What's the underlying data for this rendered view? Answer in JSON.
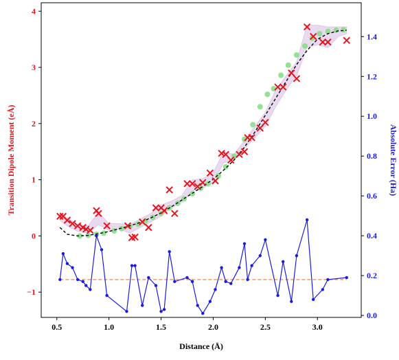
{
  "chart_data": {
    "type": "scatter",
    "title": "",
    "xlabel": "Distance (Å)",
    "ylabel_left": "Transition Dipole Moment (eÅ)",
    "ylabel_right": "Absolute Error (Ha)",
    "xlim": [
      0.35,
      3.42
    ],
    "ylim_left": [
      -1.45,
      4.15
    ],
    "ylim_right": [
      -0.01,
      1.57
    ],
    "xticks": [
      "0.5",
      "1.0",
      "1.5",
      "2.0",
      "2.5",
      "3.0"
    ],
    "yticks_left": [
      "−1",
      "0",
      "1",
      "2",
      "3",
      "4"
    ],
    "yticks_right": [
      "0.0",
      "0.2",
      "0.4",
      "0.6",
      "0.8",
      "1.0",
      "1.2",
      "1.4"
    ],
    "grid": false,
    "legend": false,
    "colors": {
      "left_axis": "#e8141c",
      "right_axis": "#1a1ae6",
      "reference_curve": "#000000",
      "predicted_points": "#88dd88",
      "uncertainty_band": "#c9a3d9",
      "observed_points": "#e8141c",
      "error_line": "#1a1ae6",
      "baseline": "#f07030"
    },
    "reference_curve": {
      "x": [
        0.53,
        0.6,
        0.7,
        0.8,
        0.9,
        1.0,
        1.1,
        1.2,
        1.3,
        1.4,
        1.5,
        1.6,
        1.7,
        1.8,
        1.9,
        2.0,
        2.1,
        2.2,
        2.3,
        2.4,
        2.5,
        2.6,
        2.7,
        2.8,
        2.9,
        3.0,
        3.1,
        3.2,
        3.28
      ],
      "y": [
        0.15,
        0.03,
        0.0,
        0.01,
        0.04,
        0.08,
        0.13,
        0.18,
        0.24,
        0.32,
        0.41,
        0.52,
        0.64,
        0.76,
        0.88,
        1.01,
        1.17,
        1.35,
        1.58,
        1.85,
        2.15,
        2.45,
        2.75,
        3.05,
        3.3,
        3.5,
        3.6,
        3.65,
        3.66
      ]
    },
    "predicted_points": {
      "x": [
        0.72,
        0.8,
        0.88,
        0.95,
        1.05,
        1.12,
        1.2,
        1.28,
        1.35,
        1.42,
        1.5,
        1.58,
        1.66,
        1.72,
        1.8,
        1.88,
        1.95,
        2.05,
        2.12,
        2.2,
        2.3,
        2.38,
        2.45,
        2.52,
        2.58,
        2.65,
        2.72,
        2.8,
        2.88,
        2.95,
        3.02,
        3.1,
        3.18,
        3.25
      ],
      "y": [
        0.0,
        0.01,
        0.03,
        0.05,
        0.09,
        0.13,
        0.17,
        0.21,
        0.27,
        0.33,
        0.4,
        0.5,
        0.58,
        0.66,
        0.75,
        0.85,
        0.93,
        1.07,
        1.23,
        1.42,
        1.72,
        1.98,
        2.3,
        2.52,
        2.62,
        2.86,
        3.04,
        3.22,
        3.38,
        3.52,
        3.6,
        3.64,
        3.66,
        3.67
      ]
    },
    "uncertainty_band": {
      "x": [
        0.53,
        0.6,
        0.7,
        0.8,
        0.9,
        1.0,
        1.1,
        1.2,
        1.3,
        1.4,
        1.5,
        1.6,
        1.7,
        1.8,
        1.9,
        2.0,
        2.1,
        2.2,
        2.3,
        2.4,
        2.5,
        2.6,
        2.7,
        2.8,
        2.9,
        3.0,
        3.1,
        3.2,
        3.28
      ],
      "lower": [
        0.28,
        0.18,
        0.08,
        0.05,
        0.2,
        0.1,
        0.12,
        0.05,
        0.15,
        0.25,
        0.35,
        0.5,
        0.6,
        0.8,
        0.85,
        0.95,
        1.3,
        1.35,
        1.55,
        1.75,
        1.95,
        2.3,
        2.6,
        2.85,
        3.35,
        3.4,
        3.35,
        3.55,
        3.6
      ],
      "upper": [
        0.42,
        0.32,
        0.2,
        0.18,
        0.42,
        0.22,
        0.22,
        0.2,
        0.3,
        0.4,
        0.55,
        0.62,
        0.72,
        1.0,
        1.02,
        1.12,
        1.5,
        1.45,
        1.7,
        1.95,
        2.2,
        2.6,
        2.85,
        3.1,
        3.75,
        3.75,
        3.72,
        3.72,
        3.72
      ]
    },
    "observed_points": {
      "x": [
        0.53,
        0.56,
        0.6,
        0.65,
        0.7,
        0.75,
        0.78,
        0.82,
        0.88,
        0.9,
        0.98,
        1.18,
        1.22,
        1.25,
        1.32,
        1.38,
        1.45,
        1.5,
        1.53,
        1.58,
        1.63,
        1.75,
        1.8,
        1.85,
        1.9,
        1.97,
        2.02,
        2.08,
        2.12,
        2.17,
        2.25,
        2.3,
        2.33,
        2.37,
        2.45,
        2.5,
        2.62,
        2.67,
        2.75,
        2.8,
        2.9,
        2.96,
        3.05,
        3.1,
        3.28
      ],
      "y": [
        0.35,
        0.35,
        0.28,
        0.22,
        0.18,
        0.15,
        0.12,
        0.1,
        0.45,
        0.4,
        0.18,
        0.18,
        -0.03,
        -0.02,
        0.25,
        0.15,
        0.5,
        0.5,
        0.45,
        0.82,
        0.4,
        0.93,
        0.93,
        0.88,
        0.95,
        1.12,
        0.98,
        1.47,
        1.45,
        1.35,
        1.45,
        1.5,
        1.75,
        1.75,
        1.92,
        2.02,
        2.65,
        2.65,
        2.9,
        2.8,
        3.72,
        3.55,
        3.45,
        3.45,
        3.48
      ]
    },
    "error_series": {
      "x": [
        0.53,
        0.56,
        0.6,
        0.65,
        0.7,
        0.75,
        0.78,
        0.82,
        0.88,
        0.93,
        0.98,
        1.17,
        1.22,
        1.25,
        1.32,
        1.38,
        1.45,
        1.5,
        1.53,
        1.58,
        1.63,
        1.75,
        1.8,
        1.85,
        1.9,
        1.97,
        2.02,
        2.08,
        2.12,
        2.17,
        2.25,
        2.3,
        2.33,
        2.37,
        2.45,
        2.5,
        2.62,
        2.67,
        2.75,
        2.8,
        2.9,
        2.96,
        3.05,
        3.1,
        3.28
      ],
      "y": [
        0.18,
        0.31,
        0.26,
        0.24,
        0.18,
        0.17,
        0.15,
        0.13,
        0.4,
        0.33,
        0.1,
        0.02,
        0.25,
        0.25,
        0.05,
        0.19,
        0.15,
        0.02,
        0.03,
        0.32,
        0.17,
        0.19,
        0.17,
        0.05,
        0.01,
        0.07,
        0.13,
        0.24,
        0.17,
        0.16,
        0.24,
        0.36,
        0.18,
        0.25,
        0.3,
        0.38,
        0.1,
        0.27,
        0.07,
        0.3,
        0.48,
        0.08,
        0.13,
        0.18,
        0.19
      ]
    },
    "baseline": {
      "y": 0.18
    }
  }
}
